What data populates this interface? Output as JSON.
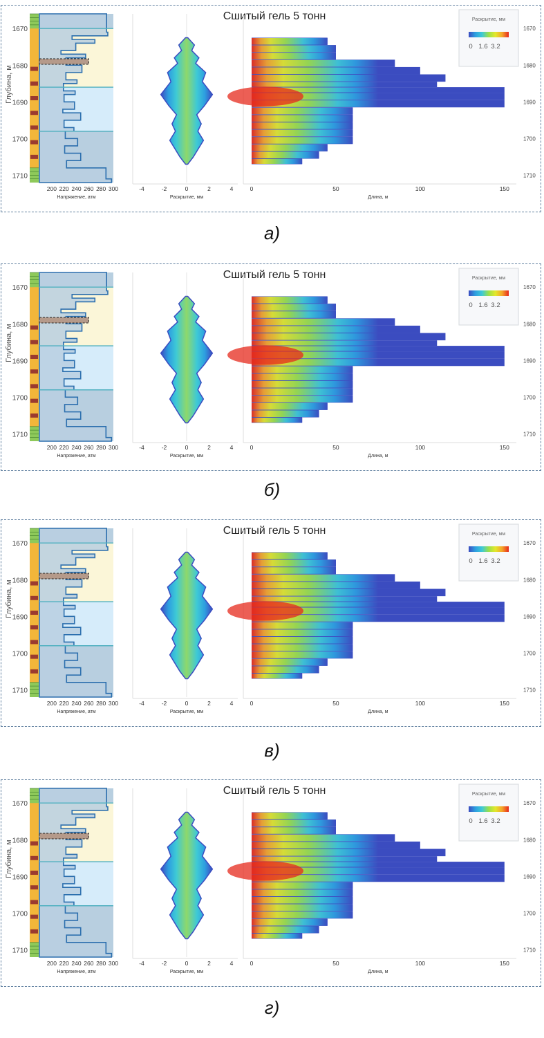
{
  "figure": {
    "panels": [
      {
        "caption": "а)",
        "title": "Сшитый гель 5 тонн"
      },
      {
        "caption": "б)",
        "title": "Сшитый гель 5 тонн"
      },
      {
        "caption": "в)",
        "title": "Сшитый гель 5 тонн"
      },
      {
        "caption": "г)",
        "title": "Сшитый гель 5 тонн"
      }
    ]
  },
  "colors": {
    "frame": "#5f7f9f",
    "stress_fill": "#b8cfe0",
    "stress_line": "#2c6fae",
    "zone_yellow": "#fbf6d8",
    "zone_blue": "#d6ecfa",
    "frac_dark": "#3b4cc0",
    "frac_hot": "#e62a1c"
  },
  "chart_data": [
    {
      "type": "line",
      "name": "stress-profile",
      "xlabel": "Напряжение, атм",
      "ylabel": "Глубина, м",
      "xlim": [
        180,
        300
      ],
      "ylim": [
        1666,
        1712
      ],
      "x_ticks": [
        "200",
        "220",
        "240",
        "260",
        "280",
        "300"
      ],
      "y_ticks": [
        "1670",
        "1680",
        "1690",
        "1700",
        "1710"
      ],
      "perforation_depth": 1679,
      "zones": [
        {
          "from": 1666,
          "to": 1670,
          "kind": "shale"
        },
        {
          "from": 1670,
          "to": 1686,
          "kind": "yellow"
        },
        {
          "from": 1686,
          "to": 1698,
          "kind": "blue"
        },
        {
          "from": 1698,
          "to": 1712,
          "kind": "shale"
        }
      ],
      "profile": [
        {
          "depth": 1666,
          "stress": 289
        },
        {
          "depth": 1671,
          "stress": 291
        },
        {
          "depth": 1672,
          "stress": 233
        },
        {
          "depth": 1673,
          "stress": 270
        },
        {
          "depth": 1674,
          "stress": 239
        },
        {
          "depth": 1676,
          "stress": 215
        },
        {
          "depth": 1677,
          "stress": 255
        },
        {
          "depth": 1678,
          "stress": 223
        },
        {
          "depth": 1680,
          "stress": 249
        },
        {
          "depth": 1682,
          "stress": 223
        },
        {
          "depth": 1684,
          "stress": 241
        },
        {
          "depth": 1685,
          "stress": 219
        },
        {
          "depth": 1687,
          "stress": 238
        },
        {
          "depth": 1688,
          "stress": 220
        },
        {
          "depth": 1690,
          "stress": 237
        },
        {
          "depth": 1692,
          "stress": 218
        },
        {
          "depth": 1693,
          "stress": 247
        },
        {
          "depth": 1695,
          "stress": 220
        },
        {
          "depth": 1697,
          "stress": 236
        },
        {
          "depth": 1698,
          "stress": 222
        },
        {
          "depth": 1700,
          "stress": 242
        },
        {
          "depth": 1702,
          "stress": 221
        },
        {
          "depth": 1704,
          "stress": 247
        },
        {
          "depth": 1706,
          "stress": 224
        },
        {
          "depth": 1708,
          "stress": 288
        },
        {
          "depth": 1711,
          "stress": 297
        }
      ]
    },
    {
      "type": "area",
      "name": "fracture-width",
      "xlabel": "Раскрытие, мм",
      "xlim": [
        -4,
        4
      ],
      "x_ticks": [
        "-4",
        "-2",
        "0",
        "2",
        "4"
      ],
      "profile": [
        {
          "depth": 1672.5,
          "half_width": 0.1
        },
        {
          "depth": 1674.5,
          "half_width": 0.7
        },
        {
          "depth": 1676.0,
          "half_width": 0.45
        },
        {
          "depth": 1678.0,
          "half_width": 1.1
        },
        {
          "depth": 1679.5,
          "half_width": 0.8
        },
        {
          "depth": 1682.0,
          "half_width": 1.7
        },
        {
          "depth": 1684.5,
          "half_width": 1.4
        },
        {
          "depth": 1688.0,
          "half_width": 2.3
        },
        {
          "depth": 1691.0,
          "half_width": 1.6
        },
        {
          "depth": 1693.5,
          "half_width": 0.9
        },
        {
          "depth": 1696.0,
          "half_width": 1.3
        },
        {
          "depth": 1698.0,
          "half_width": 1.0
        },
        {
          "depth": 1700.5,
          "half_width": 1.5
        },
        {
          "depth": 1703.0,
          "half_width": 1.0
        },
        {
          "depth": 1705.0,
          "half_width": 0.6
        },
        {
          "depth": 1707.0,
          "half_width": 0.1
        }
      ]
    },
    {
      "type": "heatmap",
      "name": "fracture-length",
      "xlabel": "Длина, м",
      "xlim": [
        0,
        155
      ],
      "x_ticks": [
        "0",
        "50",
        "100",
        "150"
      ],
      "y_ticks": [
        "1670",
        "1680",
        "1690",
        "1700",
        "1710"
      ],
      "layers": [
        {
          "top": 1672.5,
          "bottom": 1674.5,
          "length": 45
        },
        {
          "top": 1674.5,
          "bottom": 1676.5,
          "length": 50
        },
        {
          "top": 1676.5,
          "bottom": 1678.5,
          "length": 50
        },
        {
          "top": 1678.5,
          "bottom": 1680.5,
          "length": 85
        },
        {
          "top": 1680.5,
          "bottom": 1682.5,
          "length": 100
        },
        {
          "top": 1682.5,
          "bottom": 1684.5,
          "length": 115
        },
        {
          "top": 1684.5,
          "bottom": 1686.0,
          "length": 110
        },
        {
          "top": 1686.0,
          "bottom": 1687.5,
          "length": 150
        },
        {
          "top": 1687.5,
          "bottom": 1689.5,
          "length": 150
        },
        {
          "top": 1689.5,
          "bottom": 1691.5,
          "length": 150
        },
        {
          "top": 1691.5,
          "bottom": 1693.5,
          "length": 60
        },
        {
          "top": 1693.5,
          "bottom": 1695.5,
          "length": 60
        },
        {
          "top": 1695.5,
          "bottom": 1697.5,
          "length": 60
        },
        {
          "top": 1697.5,
          "bottom": 1699.5,
          "length": 60
        },
        {
          "top": 1699.5,
          "bottom": 1701.5,
          "length": 60
        },
        {
          "top": 1701.5,
          "bottom": 1703.5,
          "length": 45
        },
        {
          "top": 1703.5,
          "bottom": 1705.5,
          "length": 40
        },
        {
          "top": 1705.5,
          "bottom": 1707.0,
          "length": 30
        }
      ],
      "legend": {
        "title": "Раскрытие, мм",
        "ticks": [
          "0",
          "1.6",
          "3.2"
        ],
        "colormap": [
          "#3b4cc0",
          "#2d9fe0",
          "#3ec9d6",
          "#9be04a",
          "#e3e82b",
          "#f5a52a",
          "#e62a1c"
        ]
      }
    }
  ]
}
